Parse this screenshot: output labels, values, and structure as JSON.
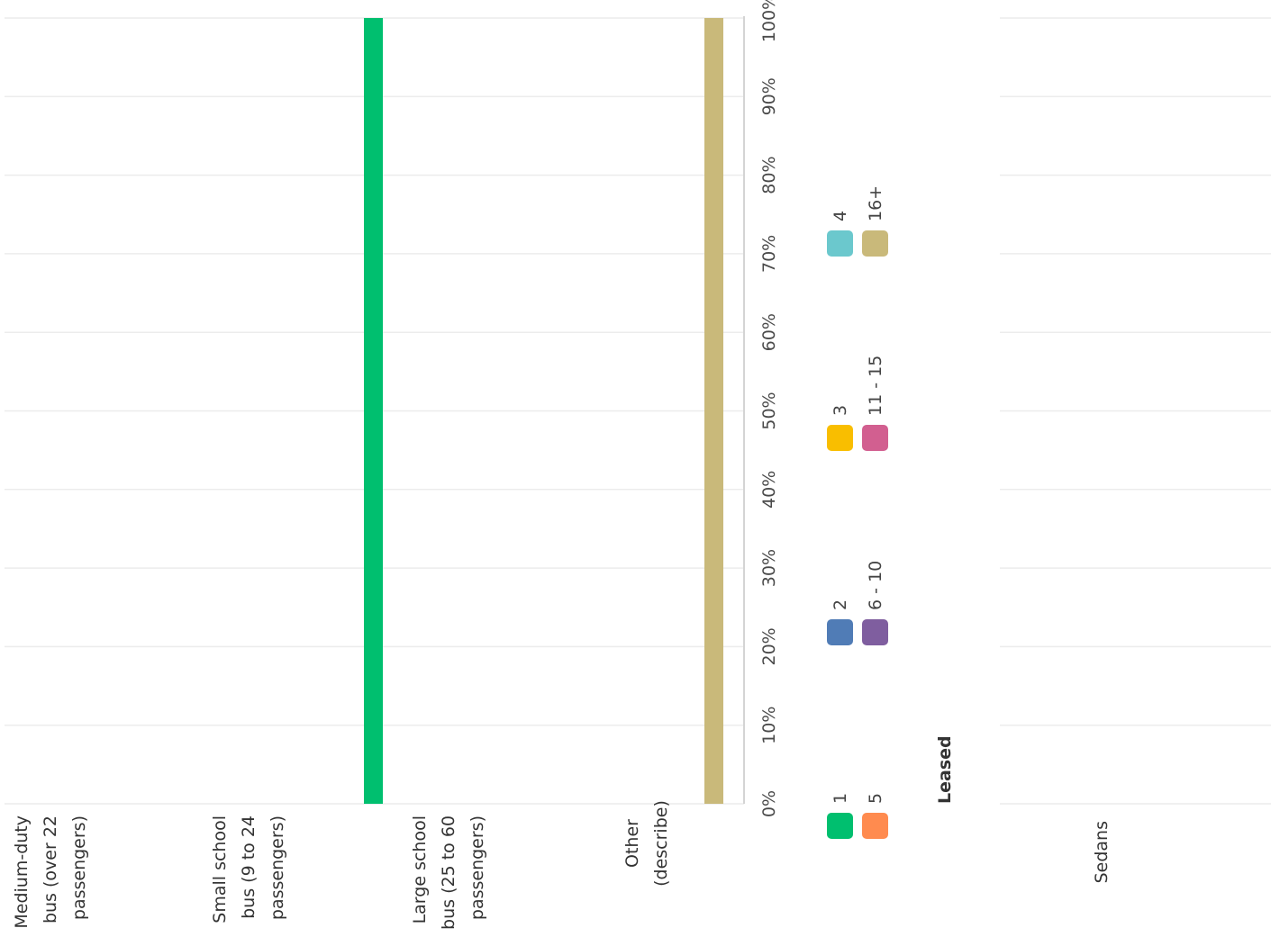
{
  "chart_data": [
    {
      "type": "bar",
      "orientation": "horizontal",
      "title": "",
      "categories": [
        "Medium-duty bus (over 22 passengers)",
        "Small school bus (9 to 24 passengers)",
        "Large school bus (25 to 60 passengers)",
        "Other (describe)"
      ],
      "category_lines": [
        [
          "Medium-duty",
          "bus (over 22",
          "passengers)"
        ],
        [
          "Small school",
          "bus (9 to 24",
          "passengers)"
        ],
        [
          "Large school",
          "bus (25 to 60",
          "passengers)"
        ],
        [
          "Other",
          "(describe)"
        ]
      ],
      "series": [
        {
          "name": "1",
          "values": [
            0,
            0,
            100,
            0
          ]
        },
        {
          "name": "2",
          "values": [
            0,
            0,
            0,
            0
          ]
        },
        {
          "name": "3",
          "values": [
            0,
            0,
            0,
            0
          ]
        },
        {
          "name": "4",
          "values": [
            0,
            0,
            0,
            0
          ]
        },
        {
          "name": "5",
          "values": [
            0,
            0,
            0,
            0
          ]
        },
        {
          "name": "6 - 10",
          "values": [
            0,
            0,
            0,
            0
          ]
        },
        {
          "name": "11 - 15",
          "values": [
            0,
            0,
            0,
            0
          ]
        },
        {
          "name": "16+",
          "values": [
            0,
            0,
            0,
            100
          ]
        }
      ],
      "xlim": [
        0,
        100
      ],
      "tick_labels": [
        "0%",
        "10%",
        "20%",
        "30%",
        "40%",
        "50%",
        "60%",
        "70%",
        "80%",
        "90%",
        "100%"
      ],
      "grid": true,
      "legend_position": "bottom"
    },
    {
      "type": "bar",
      "orientation": "horizontal",
      "title": "Leased",
      "categories": [
        "Sedans"
      ],
      "series": [],
      "xlim": [
        0,
        100
      ],
      "grid": true
    }
  ],
  "colors": {
    "1": "#00bf6f",
    "2": "#507cb6",
    "3": "#f9be00",
    "4": "#6bc8cd",
    "5": "#ff8b4f",
    "6 - 10": "#7f5e9f",
    "11 - 15": "#d25f90",
    "16+": "#c9b97a"
  },
  "legend": {
    "items": [
      "1",
      "2",
      "3",
      "4",
      "5",
      "6 - 10",
      "11 - 15",
      "16+"
    ]
  }
}
